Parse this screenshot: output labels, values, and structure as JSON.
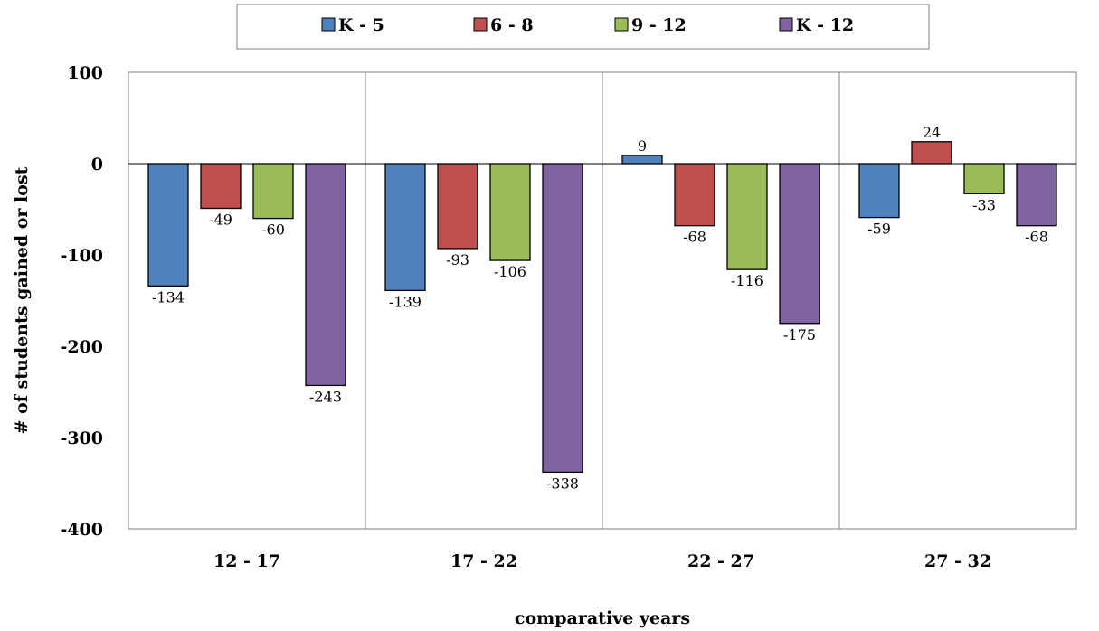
{
  "chart_data": {
    "type": "bar",
    "categories": [
      "12 - 17",
      "17 - 22",
      "22 - 27",
      "27 - 32"
    ],
    "series": [
      {
        "name": "K - 5",
        "color": "#4f81bd",
        "values": [
          -134,
          -139,
          9,
          -59
        ]
      },
      {
        "name": "6 - 8",
        "color": "#c0504d",
        "values": [
          -49,
          -93,
          -68,
          24
        ]
      },
      {
        "name": "9 - 12",
        "color": "#9bbb59",
        "values": [
          -60,
          -106,
          -116,
          -33
        ]
      },
      {
        "name": "K - 12",
        "color": "#8064a2",
        "values": [
          -243,
          -338,
          -175,
          -68
        ]
      }
    ],
    "xlabel": "comparative years",
    "ylabel": "# of students gained or lost",
    "ylim": [
      -400,
      100
    ],
    "yticks": [
      100,
      0,
      -100,
      -200,
      -300,
      -400
    ],
    "legend_position": "top",
    "grid": "vertical category separators"
  }
}
